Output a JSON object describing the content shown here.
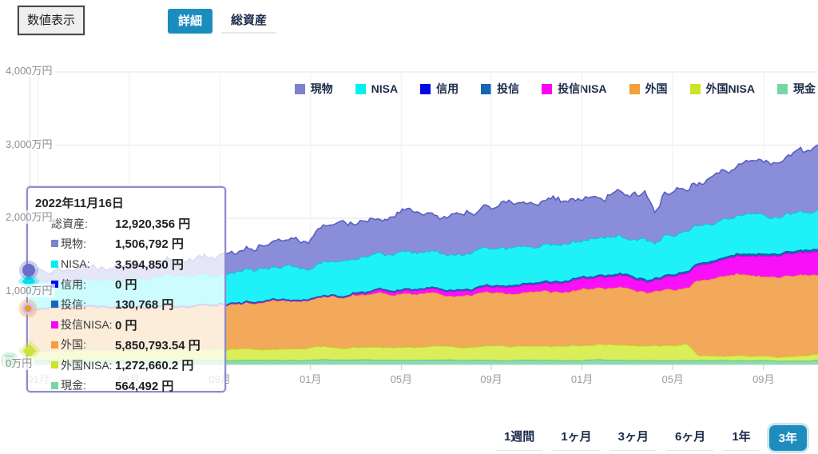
{
  "toolbar": {
    "value_display_label": "数値表示",
    "tabs": [
      {
        "label": "詳細",
        "selected": true
      },
      {
        "label": "総資産",
        "selected": false
      }
    ]
  },
  "accent_color": "#1b8cbe",
  "tooltip": {
    "date": "2022年11月16日",
    "rows": [
      {
        "label": "総資産:",
        "value": "12,920,356 円",
        "color": null
      },
      {
        "label": "現物:",
        "value": "1,506,792 円",
        "color": "#7d81cc"
      },
      {
        "label": "NISA:",
        "value": "3,594,850 円",
        "color": "#00f0f0"
      },
      {
        "label": "信用:",
        "value": "0 円",
        "color": "#0009e8"
      },
      {
        "label": "投信:",
        "value": "130,768 円",
        "color": "#1467b4"
      },
      {
        "label": "投信NISA:",
        "value": "0 円",
        "color": "#f802f8"
      },
      {
        "label": "外国:",
        "value": "5,850,793.54 円",
        "color": "#f59e3c"
      },
      {
        "label": "外国NISA:",
        "value": "1,272,660.2 円",
        "color": "#cee32b"
      },
      {
        "label": "現金:",
        "value": "564,492 円",
        "color": "#77d6a4"
      }
    ]
  },
  "periods": [
    {
      "label": "1週間",
      "selected": false
    },
    {
      "label": "1ヶ月",
      "selected": false
    },
    {
      "label": "3ヶ月",
      "selected": false
    },
    {
      "label": "6ヶ月",
      "selected": false
    },
    {
      "label": "1年",
      "selected": false
    },
    {
      "label": "3年",
      "selected": true
    }
  ],
  "chart_data": {
    "type": "area",
    "stacked": true,
    "unit": "万円",
    "grid": true,
    "legend_position": "top-right",
    "y_ticks": {
      "values": [
        0,
        1000,
        2000,
        3000,
        4000
      ],
      "labels": [
        "0万円",
        "1,000万円",
        "2,000万円",
        "3,000万円",
        "4,000万円"
      ]
    },
    "x_ticks": {
      "labels": [
        "01月",
        "05月",
        "09月",
        "01月",
        "05月",
        "09月",
        "01月",
        "05月",
        "09月"
      ],
      "fractions": [
        0.012,
        0.127,
        0.242,
        0.357,
        0.472,
        0.586,
        0.701,
        0.816,
        0.931
      ]
    },
    "hover_point_values_yen": {
      "総資産": 12920356,
      "現物": 1506792,
      "NISA": 3594850,
      "信用": 0,
      "投信": 130768,
      "投信NISA": 0,
      "外国": 5850793.54,
      "外国NISA": 1272660.2,
      "現金": 564492
    },
    "series": [
      {
        "name": "現物",
        "color": "#7d81cc",
        "fill": "#8a8ed8",
        "stroke": "#5a5ec0",
        "noise": 90,
        "marker": {
          "shape": "circle",
          "size": 16,
          "color": "#6a6ec8",
          "ring": null,
          "dx": 0
        },
        "values": [
          [
            0,
            152
          ],
          [
            0.08,
            165
          ],
          [
            0.16,
            182
          ],
          [
            0.22,
            202
          ],
          [
            0.27,
            262
          ],
          [
            0.32,
            342
          ],
          [
            0.38,
            452
          ],
          [
            0.44,
            522
          ],
          [
            0.5,
            562
          ],
          [
            0.555,
            568
          ],
          [
            0.563,
            452
          ],
          [
            0.572,
            560
          ],
          [
            0.62,
            576
          ],
          [
            0.68,
            588
          ],
          [
            0.74,
            606
          ],
          [
            0.785,
            612
          ],
          [
            0.793,
            478
          ],
          [
            0.802,
            592
          ],
          [
            0.84,
            602
          ],
          [
            0.88,
            642
          ],
          [
            0.92,
            702
          ],
          [
            0.95,
            762
          ],
          [
            0.957,
            700
          ],
          [
            0.965,
            792
          ],
          [
            0.985,
            838
          ],
          [
            1,
            885
          ]
        ]
      },
      {
        "name": "NISA",
        "color": "#00f0f0",
        "fill": "#1ef2f8",
        "stroke": "#00c4dc",
        "noise": 55,
        "marker": {
          "shape": "diamond",
          "size": 12,
          "color": "#00e0ee",
          "ring": null,
          "dx": 0
        },
        "values": [
          [
            0,
            359
          ],
          [
            0.1,
            372
          ],
          [
            0.2,
            396
          ],
          [
            0.3,
            432
          ],
          [
            0.4,
            466
          ],
          [
            0.5,
            481
          ],
          [
            0.55,
            470
          ],
          [
            0.6,
            496
          ],
          [
            0.7,
            506
          ],
          [
            0.75,
            512
          ],
          [
            0.785,
            515
          ],
          [
            0.793,
            442
          ],
          [
            0.802,
            506
          ],
          [
            0.87,
            500
          ],
          [
            0.9,
            522
          ],
          [
            0.95,
            516
          ],
          [
            1,
            532
          ]
        ]
      },
      {
        "name": "信用",
        "color": "#0009e8",
        "fill": "#0009e8",
        "stroke": "#0007c0",
        "noise": 0,
        "marker": null,
        "values": [
          [
            0,
            0
          ],
          [
            1,
            0
          ]
        ]
      },
      {
        "name": "投信",
        "color": "#1467b4",
        "fill": "#1467b4",
        "stroke": "#0d5aa0",
        "noise": 3,
        "marker": null,
        "values": [
          [
            0,
            13
          ],
          [
            0.3,
            16
          ],
          [
            0.5,
            19
          ],
          [
            0.7,
            25
          ],
          [
            0.9,
            30
          ],
          [
            1,
            33
          ]
        ]
      },
      {
        "name": "投信NISA",
        "color": "#f802f8",
        "fill": "#f811f8",
        "stroke": "#d400d4",
        "noise": 14,
        "marker": null,
        "values": [
          [
            0,
            0
          ],
          [
            0.38,
            0
          ],
          [
            0.45,
            42
          ],
          [
            0.5,
            56
          ],
          [
            0.55,
            66
          ],
          [
            0.6,
            92
          ],
          [
            0.65,
            112
          ],
          [
            0.7,
            140
          ],
          [
            0.75,
            165
          ],
          [
            0.788,
            150
          ],
          [
            0.82,
            192
          ],
          [
            0.87,
            230
          ],
          [
            0.9,
            258
          ],
          [
            0.93,
            278
          ],
          [
            0.96,
            300
          ],
          [
            1,
            330
          ]
        ]
      },
      {
        "name": "外国",
        "color": "#f59e3c",
        "fill": "#f2a959",
        "stroke": "#e8912f",
        "noise": 35,
        "marker": {
          "shape": "circle",
          "size": 15,
          "color": "#f09a38",
          "ring": "#cfc4ee",
          "dx": -1
        },
        "values": [
          [
            0,
            585
          ],
          [
            0.1,
            578
          ],
          [
            0.2,
            590
          ],
          [
            0.3,
            640
          ],
          [
            0.36,
            672
          ],
          [
            0.42,
            718
          ],
          [
            0.5,
            718
          ],
          [
            0.55,
            700
          ],
          [
            0.6,
            712
          ],
          [
            0.68,
            750
          ],
          [
            0.76,
            800
          ],
          [
            0.788,
            715
          ],
          [
            0.802,
            770
          ],
          [
            0.835,
            790
          ],
          [
            0.848,
            1045
          ],
          [
            0.9,
            1115
          ],
          [
            0.93,
            1080
          ],
          [
            0.97,
            1100
          ],
          [
            1,
            1118
          ]
        ]
      },
      {
        "name": "外国NISA",
        "color": "#cee32b",
        "fill": "#d9ee58",
        "stroke": "#bede20",
        "noise": 22,
        "marker": {
          "shape": "diamond",
          "size": 12,
          "color": "#cde23a",
          "ring": null,
          "dx": 1
        },
        "values": [
          [
            0,
            127
          ],
          [
            0.15,
            140
          ],
          [
            0.35,
            163
          ],
          [
            0.55,
            185
          ],
          [
            0.72,
            205
          ],
          [
            0.835,
            215
          ],
          [
            0.848,
            62
          ],
          [
            0.92,
            60
          ],
          [
            1,
            68
          ]
        ]
      },
      {
        "name": "現金",
        "color": "#77d6a4",
        "fill": "#8cdbb0",
        "stroke": "#4cc392",
        "noise": 10,
        "marker": {
          "shape": "square",
          "size": 12,
          "color": "#7fd4a6",
          "ring": null,
          "dx": -24
        },
        "values": [
          [
            0,
            56
          ],
          [
            0.2,
            60
          ],
          [
            0.4,
            63
          ],
          [
            0.6,
            61
          ],
          [
            0.8,
            59
          ],
          [
            1,
            55
          ]
        ]
      }
    ]
  }
}
